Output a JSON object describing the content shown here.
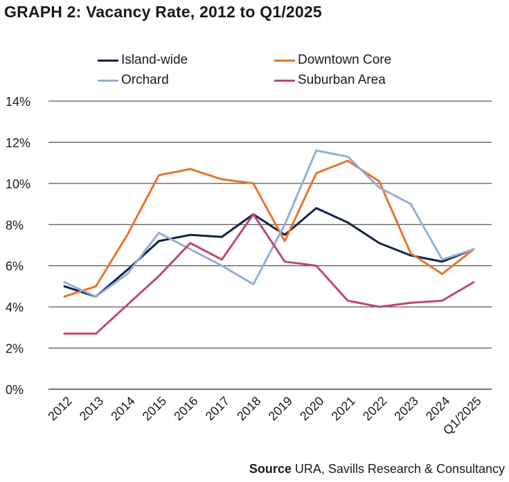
{
  "page": {
    "title": "GRAPH 2: Vacancy Rate, 2012 to Q1/2025",
    "source_label": "Source",
    "source_text": "URA, Savills Research & Consultancy"
  },
  "chart_data": {
    "type": "line",
    "title": "GRAPH 2: Vacancy Rate, 2012 to Q1/2025",
    "xlabel": "",
    "ylabel": "",
    "categories": [
      "2012",
      "2013",
      "2014",
      "2015",
      "2016",
      "2017",
      "2018",
      "2019",
      "2020",
      "2021",
      "2022",
      "2023",
      "2024",
      "Q1/2025"
    ],
    "y_ticks": [
      "0%",
      "2%",
      "4%",
      "6%",
      "8%",
      "10%",
      "12%",
      "14%"
    ],
    "ylim": [
      0,
      14
    ],
    "grid": "horizontal",
    "legend_placement": "top",
    "series": [
      {
        "name": "Island-wide",
        "color": "#13214a",
        "values": [
          5.0,
          4.5,
          5.8,
          7.2,
          7.5,
          7.4,
          8.5,
          7.5,
          8.8,
          8.1,
          7.1,
          6.5,
          6.2,
          6.8
        ]
      },
      {
        "name": "Downtown Core",
        "color": "#e8742c",
        "values": [
          4.5,
          5.0,
          7.5,
          10.4,
          10.7,
          10.2,
          10.0,
          7.2,
          10.5,
          11.1,
          10.1,
          6.6,
          5.6,
          6.8
        ]
      },
      {
        "name": "Orchard",
        "color": "#93aed0",
        "values": [
          5.2,
          4.5,
          5.6,
          7.6,
          6.8,
          6.0,
          5.1,
          8.0,
          11.6,
          11.3,
          9.8,
          9.0,
          6.3,
          6.8
        ]
      },
      {
        "name": "Suburban Area",
        "color": "#c2466f",
        "values": [
          2.7,
          2.7,
          4.1,
          5.5,
          7.1,
          6.3,
          8.5,
          6.2,
          6.0,
          4.3,
          4.0,
          4.2,
          4.3,
          5.2
        ]
      }
    ]
  }
}
